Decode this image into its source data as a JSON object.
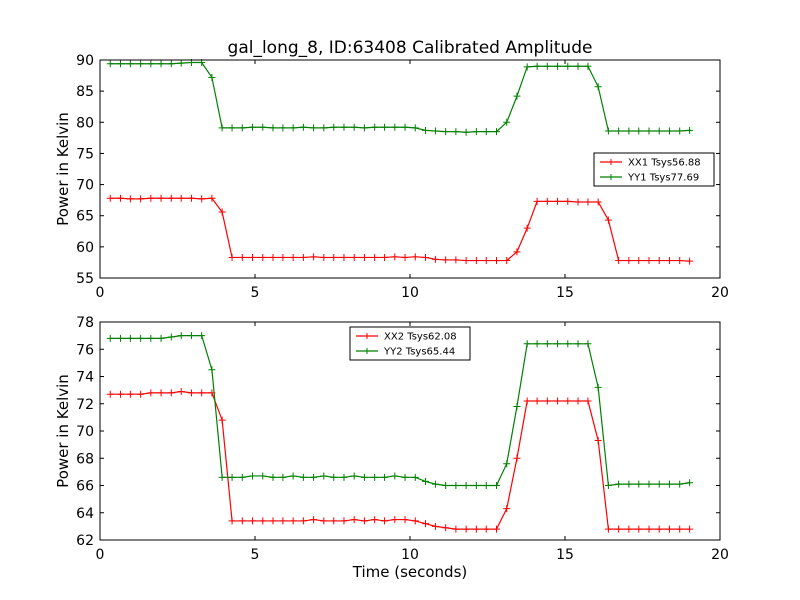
{
  "figure": {
    "title": "gal_long_8, ID:63408 Calibrated Amplitude"
  },
  "chart_data": [
    {
      "type": "line",
      "title": "gal_long_8, ID:63408 Calibrated Amplitude",
      "xlabel": "",
      "ylabel": "Power in Kelvin",
      "xlim": [
        0,
        20
      ],
      "ylim": [
        55,
        90
      ],
      "xticks": [
        0,
        5,
        10,
        15,
        20
      ],
      "yticks": [
        55,
        60,
        65,
        70,
        75,
        80,
        85,
        90
      ],
      "grid": false,
      "legend_position": "center-right",
      "x": [
        0.33,
        0.66,
        0.98,
        1.31,
        1.64,
        1.97,
        2.3,
        2.62,
        2.95,
        3.28,
        3.61,
        3.94,
        4.26,
        4.59,
        4.92,
        5.25,
        5.58,
        5.9,
        6.23,
        6.56,
        6.89,
        7.22,
        7.54,
        7.87,
        8.2,
        8.53,
        8.86,
        9.18,
        9.51,
        9.84,
        10.17,
        10.5,
        10.82,
        11.15,
        11.48,
        11.81,
        12.14,
        12.46,
        12.79,
        13.12,
        13.45,
        13.78,
        14.1,
        14.43,
        14.76,
        15.09,
        15.42,
        15.74,
        16.07,
        16.4,
        16.73,
        17.06,
        17.38,
        17.71,
        18.04,
        18.37,
        18.7,
        19.02
      ],
      "series": [
        {
          "name": "XX1 Tsys56.88",
          "color": "#ff0000",
          "values": [
            67.8,
            67.8,
            67.7,
            67.7,
            67.8,
            67.8,
            67.8,
            67.8,
            67.8,
            67.7,
            67.8,
            65.6,
            58.3,
            58.3,
            58.3,
            58.3,
            58.3,
            58.3,
            58.3,
            58.3,
            58.4,
            58.3,
            58.3,
            58.3,
            58.3,
            58.3,
            58.3,
            58.3,
            58.4,
            58.3,
            58.4,
            58.3,
            58.0,
            57.9,
            57.9,
            57.8,
            57.8,
            57.8,
            57.8,
            57.8,
            59.2,
            63.0,
            67.3,
            67.3,
            67.3,
            67.3,
            67.2,
            67.2,
            67.2,
            64.3,
            57.8,
            57.8,
            57.8,
            57.8,
            57.8,
            57.8,
            57.8,
            57.7
          ]
        },
        {
          "name": "YY1 Tsys77.69",
          "color": "#008000",
          "values": [
            89.4,
            89.4,
            89.4,
            89.4,
            89.4,
            89.4,
            89.4,
            89.5,
            89.6,
            89.6,
            87.2,
            79.1,
            79.1,
            79.1,
            79.2,
            79.2,
            79.1,
            79.1,
            79.1,
            79.2,
            79.1,
            79.1,
            79.2,
            79.2,
            79.2,
            79.1,
            79.2,
            79.2,
            79.2,
            79.2,
            79.1,
            78.7,
            78.6,
            78.5,
            78.5,
            78.4,
            78.5,
            78.5,
            78.5,
            80.0,
            84.2,
            88.9,
            89.0,
            89.0,
            89.0,
            89.0,
            89.0,
            89.0,
            85.7,
            78.6,
            78.6,
            78.6,
            78.6,
            78.6,
            78.6,
            78.6,
            78.6,
            78.7
          ]
        }
      ]
    },
    {
      "type": "line",
      "title": "",
      "xlabel": "Time (seconds)",
      "ylabel": "Power in Kelvin",
      "xlim": [
        0,
        20
      ],
      "ylim": [
        62,
        78
      ],
      "xticks": [
        0,
        5,
        10,
        15,
        20
      ],
      "yticks": [
        62,
        64,
        66,
        68,
        70,
        72,
        74,
        76,
        78
      ],
      "grid": false,
      "legend_position": "top-center",
      "x": [
        0.33,
        0.66,
        0.98,
        1.31,
        1.64,
        1.97,
        2.3,
        2.62,
        2.95,
        3.28,
        3.61,
        3.94,
        4.26,
        4.59,
        4.92,
        5.25,
        5.58,
        5.9,
        6.23,
        6.56,
        6.89,
        7.22,
        7.54,
        7.87,
        8.2,
        8.53,
        8.86,
        9.18,
        9.51,
        9.84,
        10.17,
        10.5,
        10.82,
        11.15,
        11.48,
        11.81,
        12.14,
        12.46,
        12.79,
        13.12,
        13.45,
        13.78,
        14.1,
        14.43,
        14.76,
        15.09,
        15.42,
        15.74,
        16.07,
        16.4,
        16.73,
        17.06,
        17.38,
        17.71,
        18.04,
        18.37,
        18.7,
        19.02
      ],
      "series": [
        {
          "name": "XX2 Tsys62.08",
          "color": "#ff0000",
          "values": [
            72.7,
            72.7,
            72.7,
            72.7,
            72.8,
            72.8,
            72.8,
            72.9,
            72.8,
            72.8,
            72.8,
            70.8,
            63.4,
            63.4,
            63.4,
            63.4,
            63.4,
            63.4,
            63.4,
            63.4,
            63.5,
            63.4,
            63.4,
            63.4,
            63.5,
            63.4,
            63.5,
            63.4,
            63.5,
            63.5,
            63.4,
            63.2,
            63.0,
            62.9,
            62.8,
            62.8,
            62.8,
            62.8,
            62.8,
            64.3,
            68.0,
            72.2,
            72.2,
            72.2,
            72.2,
            72.2,
            72.2,
            72.2,
            69.3,
            62.8,
            62.8,
            62.8,
            62.8,
            62.8,
            62.8,
            62.8,
            62.8,
            62.8
          ]
        },
        {
          "name": "YY2 Tsys65.44",
          "color": "#008000",
          "values": [
            76.8,
            76.8,
            76.8,
            76.8,
            76.8,
            76.8,
            76.9,
            77.0,
            77.0,
            77.0,
            74.5,
            66.6,
            66.6,
            66.6,
            66.7,
            66.7,
            66.6,
            66.6,
            66.7,
            66.6,
            66.6,
            66.7,
            66.6,
            66.6,
            66.7,
            66.6,
            66.6,
            66.6,
            66.7,
            66.6,
            66.6,
            66.3,
            66.1,
            66.0,
            66.0,
            66.0,
            66.0,
            66.0,
            66.0,
            67.6,
            71.8,
            76.4,
            76.4,
            76.4,
            76.4,
            76.4,
            76.4,
            76.4,
            73.2,
            66.0,
            66.1,
            66.1,
            66.1,
            66.1,
            66.1,
            66.1,
            66.1,
            66.2
          ]
        }
      ]
    }
  ]
}
